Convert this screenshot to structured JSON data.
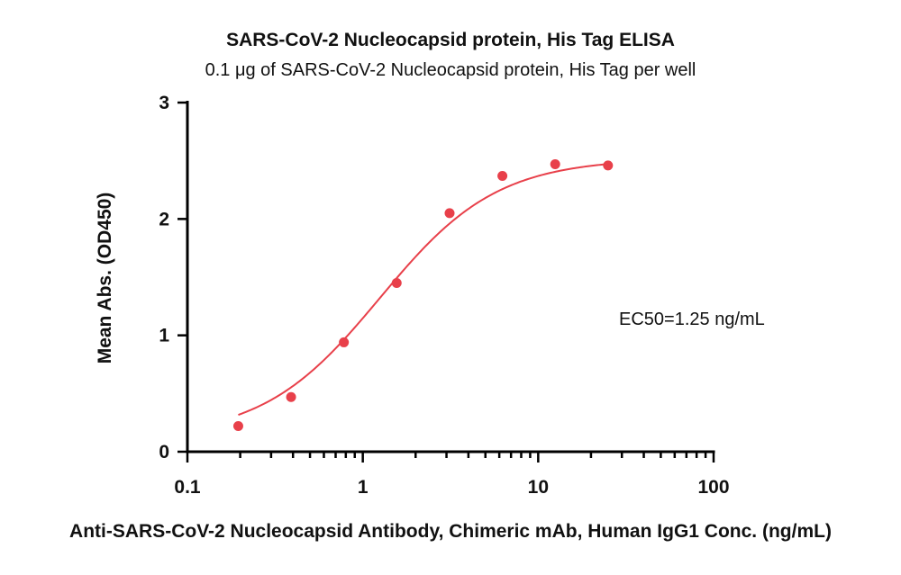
{
  "chart_data": {
    "type": "scatter",
    "title": "SARS-CoV-2 Nucleocapsid protein, His Tag ELISA",
    "subtitle": "0.1 μg of SARS-CoV-2 Nucleocapsid protein, His Tag per well",
    "xlabel": "Anti-SARS-CoV-2 Nucleocapsid Antibody, Chimeric mAb, Human IgG1 Conc. (ng/mL)",
    "ylabel": "Mean Abs. (OD450)",
    "x_scale": "log",
    "xlim": [
      0.1,
      100
    ],
    "ylim": [
      0,
      3
    ],
    "x_ticks": [
      {
        "value": 0.1,
        "label": "0.1"
      },
      {
        "value": 1,
        "label": "1"
      },
      {
        "value": 10,
        "label": "10"
      },
      {
        "value": 100,
        "label": "100"
      }
    ],
    "y_ticks": [
      {
        "value": 0,
        "label": "0"
      },
      {
        "value": 1,
        "label": "1"
      },
      {
        "value": 2,
        "label": "2"
      },
      {
        "value": 3,
        "label": "3"
      }
    ],
    "grid": false,
    "legend": "none",
    "series": [
      {
        "color": "#e8404a",
        "x": [
          0.195,
          0.39,
          0.78,
          1.56,
          3.125,
          6.25,
          12.5,
          25
        ],
        "y": [
          0.22,
          0.47,
          0.94,
          1.45,
          2.05,
          2.37,
          2.47,
          2.46
        ],
        "fit": {
          "model": "4PL",
          "bottom": 0.12,
          "top": 2.52,
          "ec50": 1.25,
          "hill": 1.3
        }
      }
    ],
    "annotations": [
      {
        "text": "EC50=1.25 ng/mL"
      }
    ]
  }
}
